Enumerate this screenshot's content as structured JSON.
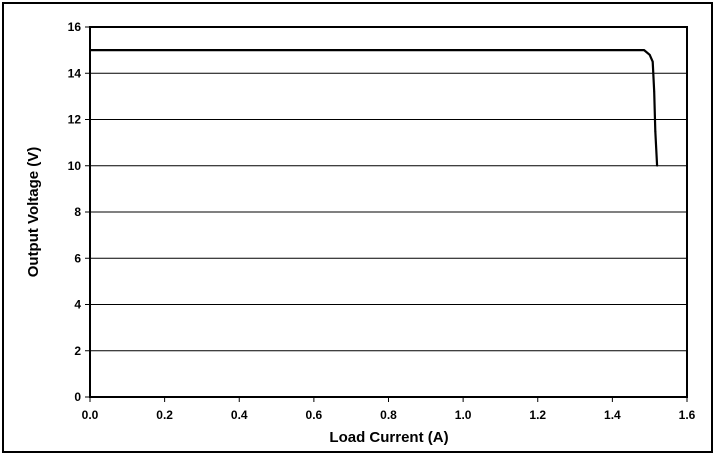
{
  "chart_data": {
    "type": "line",
    "title": "",
    "xlabel": "Load Current (A)",
    "ylabel": "Output Voltage (V)",
    "xlim": [
      0,
      1.6
    ],
    "ylim": [
      0,
      16
    ],
    "x_ticks": [
      "0.0",
      "0.2",
      "0.4",
      "0.6",
      "0.8",
      "1.0",
      "1.2",
      "1.4",
      "1.6"
    ],
    "y_ticks": [
      "0",
      "2",
      "4",
      "6",
      "8",
      "10",
      "12",
      "14",
      "16"
    ],
    "grid": "horizontal",
    "legend": "none",
    "series": [
      {
        "x": [
          0.0,
          0.68,
          1.36,
          1.485,
          1.5,
          1.508,
          1.512,
          1.515,
          1.52
        ],
        "y": [
          15.0,
          15.0,
          15.0,
          15.0,
          14.8,
          14.5,
          13.2,
          11.5,
          10.0
        ],
        "color": "#000000"
      }
    ]
  }
}
